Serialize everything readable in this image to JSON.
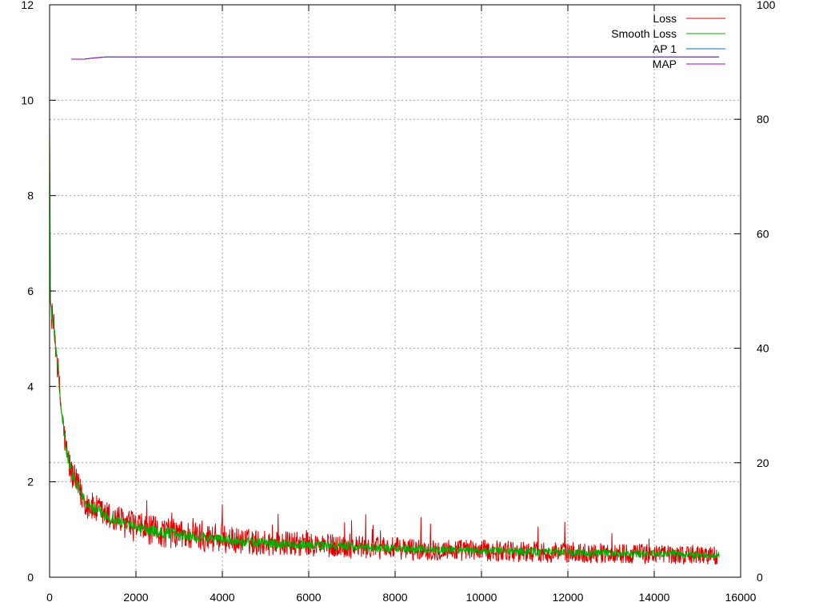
{
  "chart_data": {
    "type": "line",
    "title": "",
    "xlabel": "",
    "ylabel": "",
    "y2label": "",
    "xlim": [
      0,
      16000
    ],
    "ylim": [
      0,
      12
    ],
    "y2lim": [
      0,
      100
    ],
    "x_ticks": [
      0,
      2000,
      4000,
      6000,
      8000,
      10000,
      12000,
      14000,
      16000
    ],
    "y_ticks": [
      0,
      2,
      4,
      6,
      8,
      10,
      12
    ],
    "y2_ticks": [
      0,
      20,
      40,
      60,
      80,
      100
    ],
    "grid": true,
    "legend_position": "top-right",
    "series": [
      {
        "name": "Loss",
        "axis": "y",
        "color": "#e00000",
        "x": [
          0,
          20,
          50,
          100,
          150,
          200,
          250,
          300,
          350,
          400,
          450,
          500,
          600,
          700,
          800,
          1000,
          1200,
          1500,
          2000,
          2500,
          3000,
          3500,
          4000,
          4500,
          5000,
          5500,
          6000,
          6500,
          7000,
          7500,
          8000,
          8500,
          9000,
          9500,
          10000,
          10500,
          11000,
          11500,
          12000,
          12500,
          13000,
          13500,
          14000,
          14500,
          15000,
          15500
        ],
        "values": [
          9.5,
          5.8,
          5.5,
          5.2,
          4.8,
          4.3,
          3.7,
          3.3,
          2.9,
          2.6,
          2.4,
          2.2,
          2.0,
          1.8,
          1.6,
          1.45,
          1.35,
          1.2,
          1.05,
          0.95,
          0.9,
          0.85,
          0.8,
          0.75,
          0.72,
          0.7,
          0.68,
          0.66,
          0.64,
          0.62,
          0.6,
          0.59,
          0.58,
          0.57,
          0.56,
          0.55,
          0.54,
          0.53,
          0.52,
          0.51,
          0.5,
          0.5,
          0.49,
          0.48,
          0.47,
          0.46
        ],
        "noise": 0.32
      },
      {
        "name": "Smooth Loss",
        "axis": "y",
        "color": "#00b000",
        "x": [
          0,
          20,
          50,
          100,
          150,
          200,
          250,
          300,
          350,
          400,
          450,
          500,
          600,
          700,
          800,
          1000,
          1200,
          1500,
          2000,
          2500,
          3000,
          3500,
          4000,
          4500,
          5000,
          5500,
          6000,
          6500,
          7000,
          7500,
          8000,
          8500,
          9000,
          9500,
          10000,
          10500,
          11000,
          11500,
          12000,
          12500,
          13000,
          13500,
          14000,
          14500,
          15000,
          15500
        ],
        "values": [
          9.5,
          5.8,
          5.5,
          5.2,
          4.8,
          4.3,
          3.7,
          3.3,
          2.9,
          2.6,
          2.4,
          2.2,
          2.0,
          1.8,
          1.6,
          1.45,
          1.35,
          1.2,
          1.05,
          0.95,
          0.9,
          0.85,
          0.8,
          0.75,
          0.72,
          0.7,
          0.68,
          0.66,
          0.64,
          0.62,
          0.6,
          0.59,
          0.58,
          0.57,
          0.56,
          0.55,
          0.54,
          0.53,
          0.52,
          0.51,
          0.5,
          0.5,
          0.49,
          0.48,
          0.47,
          0.46
        ],
        "noise": 0.12
      },
      {
        "name": "AP 1",
        "axis": "y2",
        "color": "#0072bd",
        "x": [
          500,
          800,
          1000,
          1300,
          15500
        ],
        "values": [
          90.5,
          90.5,
          90.7,
          90.9,
          90.9
        ]
      },
      {
        "name": "MAP",
        "axis": "y2",
        "color": "#a000c0",
        "x": [
          500,
          800,
          1000,
          1300,
          15500
        ],
        "values": [
          90.5,
          90.5,
          90.7,
          90.9,
          90.9
        ]
      }
    ]
  }
}
